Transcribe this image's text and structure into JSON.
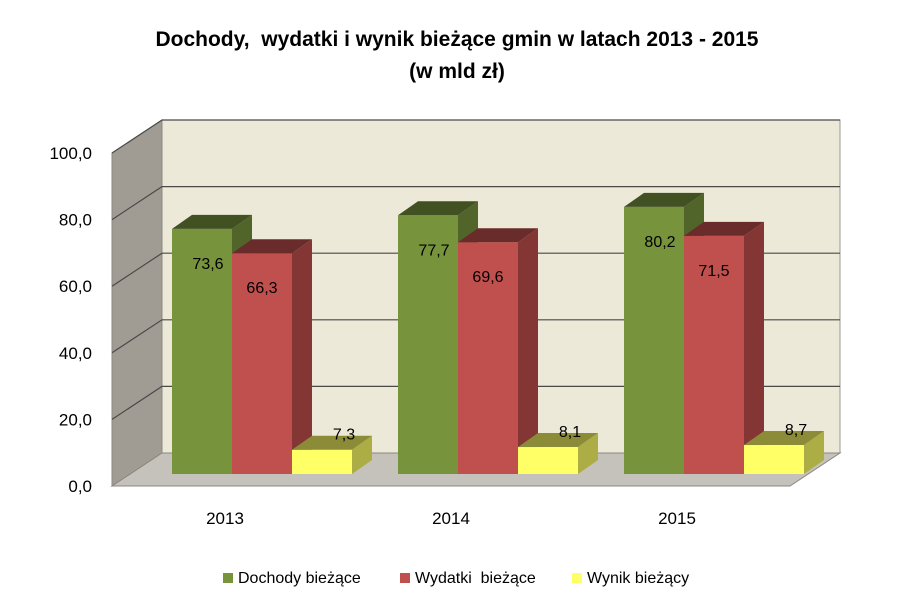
{
  "chart_data": {
    "type": "bar",
    "title": [
      "Dochody,  wydatki i wynik bieżące gmin w latach 2013 - 2015",
      "(w mld zł)"
    ],
    "categories": [
      "2013",
      "2014",
      "2015"
    ],
    "series": [
      {
        "name": "Dochody bieżące",
        "values": [
          73.6,
          77.7,
          80.2
        ],
        "labels": [
          "73,6",
          "77,7",
          "80,2"
        ],
        "color": "#77933c"
      },
      {
        "name": "Wydatki  bieżące",
        "values": [
          66.3,
          69.6,
          71.5
        ],
        "labels": [
          "66,3",
          "69,6",
          "71,5"
        ],
        "color": "#c0504d"
      },
      {
        "name": "Wynik bieżący",
        "values": [
          7.3,
          8.1,
          8.7
        ],
        "labels": [
          "7,3",
          "8,1",
          "8,7"
        ],
        "color": "#ffff66"
      }
    ],
    "y_ticks": [
      "0,0",
      "20,0",
      "40,0",
      "60,0",
      "80,0",
      "100,0"
    ],
    "ylim": [
      0,
      100
    ],
    "grid": true,
    "legend_position": "bottom",
    "three_d": true,
    "wall_color": "#ece9d8",
    "side_wall_color": "#a09c94",
    "floor_color": "#c4c2ba"
  }
}
